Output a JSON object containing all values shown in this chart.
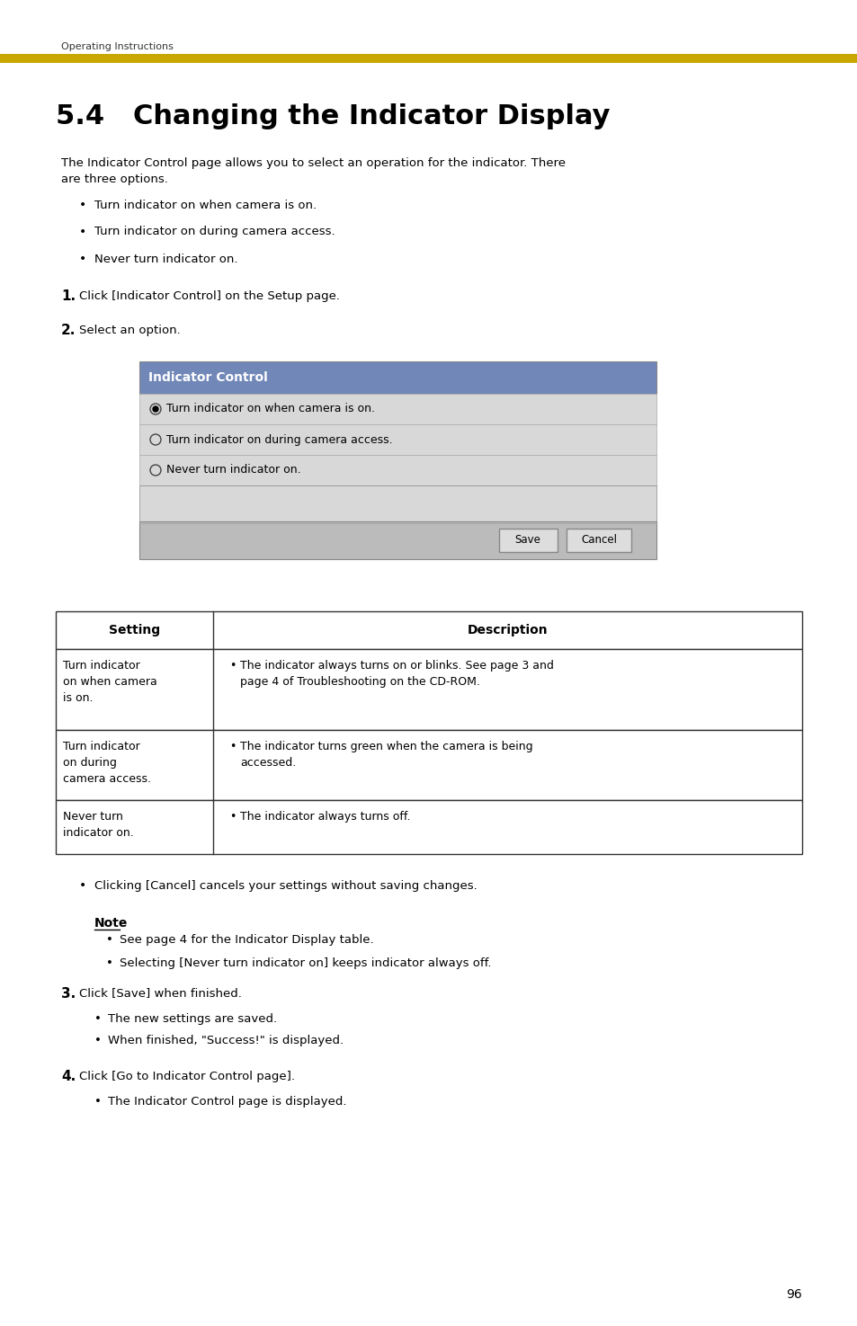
{
  "page_bg": "#ffffff",
  "top_label": "Operating Instructions",
  "gold_bar_color": "#C8A800",
  "section_title": "5.4   Changing the Indicator Display",
  "body_text_intro": "The Indicator Control page allows you to select an operation for the indicator. There\nare three options.",
  "bullets_intro": [
    "Turn indicator on when camera is on.",
    "Turn indicator on during camera access.",
    "Never turn indicator on."
  ],
  "step1": "Click [Indicator Control] on the Setup page.",
  "step2": "Select an option.",
  "ui_header": "Indicator Control",
  "ui_header_bg": "#7087B8",
  "ui_header_text": "#ffffff",
  "ui_row_bg": "#D8D8D8",
  "ui_options": [
    "Turn indicator on when camera is on.",
    "Turn indicator on during camera access.",
    "Never turn indicator on."
  ],
  "ui_selected": 0,
  "ui_button_bg": "#C8C8C8",
  "table_header": [
    "Setting",
    "Description"
  ],
  "table_rows": [
    {
      "setting": "Turn indicator\non when camera\nis on.",
      "description": "The indicator always turns on or blinks. See page 3 and\npage 4 of Troubleshooting on the CD-ROM."
    },
    {
      "setting": "Turn indicator\non during\ncamera access.",
      "description": "The indicator turns green when the camera is being\naccessed."
    },
    {
      "setting": "Never turn\nindicator on.",
      "description": "The indicator always turns off."
    }
  ],
  "cancel_note": "Clicking [Cancel] cancels your settings without saving changes.",
  "note_title": "Note",
  "note_bullets": [
    "See page 4 for the Indicator Display table.",
    "Selecting [Never turn indicator on] keeps indicator always off."
  ],
  "step3": "Click [Save] when finished.",
  "step3_bullets": [
    "The new settings are saved.",
    "When finished, \"Success!\" is displayed."
  ],
  "step4": "Click [Go to Indicator Control page].",
  "step4_bullets": [
    "The Indicator Control page is displayed."
  ],
  "page_number": "96"
}
